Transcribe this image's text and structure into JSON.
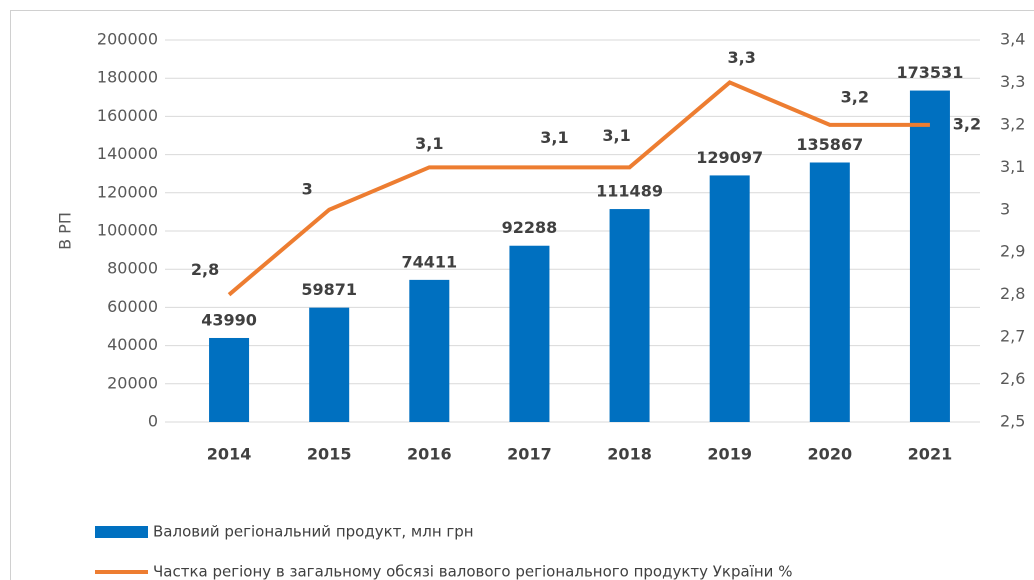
{
  "chart_data": {
    "type": "bar",
    "y_axis_label": "В РП",
    "categories": [
      "2014",
      "2015",
      "2016",
      "2017",
      "2018",
      "2019",
      "2020",
      "2021"
    ],
    "series": [
      {
        "name": "Валовий регіональний продукт, млн грн",
        "type": "bar",
        "color": "#0070c0",
        "values": [
          43990,
          59871,
          74411,
          92288,
          111489,
          129097,
          135867,
          173531
        ]
      },
      {
        "name": "Частка  регіону  в загальному обсязі валового регіонального продукту України %",
        "type": "line",
        "axis": "y2",
        "color": "#ed7d31",
        "values": [
          2.8,
          3,
          3.1,
          3.1,
          3.1,
          3.3,
          3.2,
          3.2
        ],
        "value_labels": [
          "2,8",
          "3",
          "3,1",
          "3,1",
          "3,1",
          "3,3",
          "3,2",
          "3,2"
        ]
      }
    ],
    "ylim": [
      0,
      200000
    ],
    "yticks": [
      0,
      20000,
      40000,
      60000,
      80000,
      100000,
      120000,
      140000,
      160000,
      180000,
      200000
    ],
    "y2lim": [
      2.5,
      3.4
    ],
    "y2ticks": [
      {
        "value": 2.5,
        "label": "2,5"
      },
      {
        "value": 2.6,
        "label": "2,6"
      },
      {
        "value": 2.7,
        "label": "2,7"
      },
      {
        "value": 2.8,
        "label": "2,8"
      },
      {
        "value": 2.9,
        "label": "2,9"
      },
      3,
      {
        "value": 3.1,
        "label": "3,1"
      },
      {
        "value": 3.2,
        "label": "3,2"
      },
      {
        "value": 3.3,
        "label": "3,3"
      },
      {
        "value": 3.4,
        "label": "3,4"
      }
    ],
    "grid": true,
    "legend": "bottom"
  }
}
